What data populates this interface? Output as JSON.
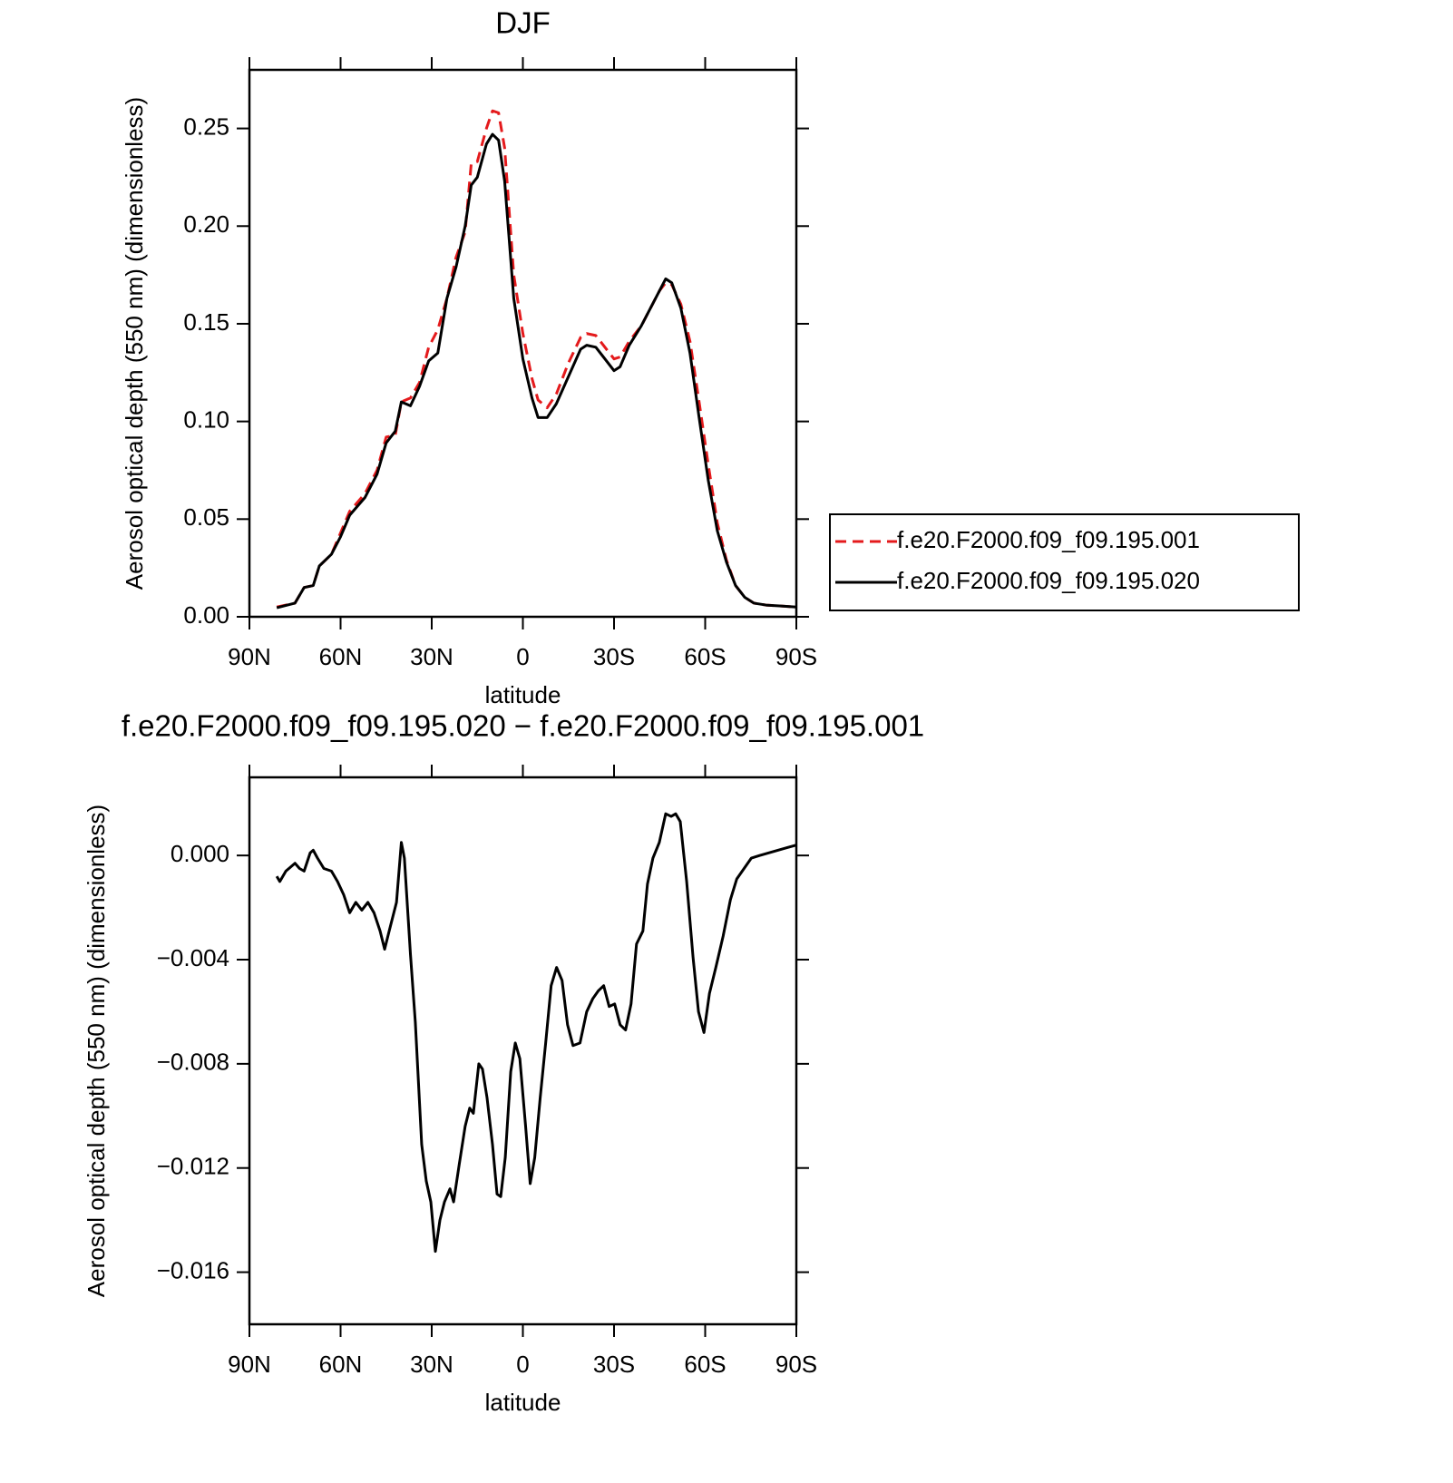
{
  "chart_data": [
    {
      "type": "line",
      "title": "DJF",
      "xlabel": "latitude",
      "ylabel": "Aerosol optical depth (550 nm) (dimensionless)",
      "xlim": [
        90,
        -90
      ],
      "ylim": [
        0,
        0.28
      ],
      "xticks": [
        {
          "value": 90,
          "label": "90N"
        },
        {
          "value": 60,
          "label": "60N"
        },
        {
          "value": 30,
          "label": "30N"
        },
        0,
        {
          "value": -30,
          "label": "30S"
        },
        {
          "value": -60,
          "label": "60S"
        },
        {
          "value": -90,
          "label": "90S"
        }
      ],
      "yticks": [
        {
          "value": 0,
          "label": "0.00"
        },
        0.05,
        {
          "value": 0.1,
          "label": "0.10"
        },
        0.15,
        {
          "value": 0.2,
          "label": "0.20"
        },
        0.25
      ],
      "legend": "right",
      "x": [
        81,
        75,
        72,
        69,
        67,
        63,
        60,
        57,
        52,
        48,
        45,
        42,
        40,
        37,
        34,
        31,
        28,
        25,
        22,
        19,
        17,
        15,
        12,
        10,
        8,
        6,
        3,
        0,
        -3,
        -5,
        -8,
        -11,
        -15,
        -19,
        -21,
        -24,
        -27,
        -30,
        -32,
        -35,
        -39,
        -42,
        -45,
        -47,
        -49,
        -52,
        -55,
        -58,
        -61,
        -64,
        -67,
        -70,
        -73,
        -76,
        -80,
        -85,
        -90
      ],
      "series": [
        {
          "name": "f.e20.F2000.f09_f09.195.001",
          "color": "#e41a1c",
          "linestyle": "dashed",
          "values": [
            0.005,
            0.007,
            0.015,
            0.016,
            0.026,
            0.032,
            0.043,
            0.054,
            0.063,
            0.075,
            0.092,
            0.093,
            0.11,
            0.112,
            0.12,
            0.138,
            0.147,
            0.163,
            0.184,
            0.197,
            0.232,
            0.233,
            0.25,
            0.259,
            0.258,
            0.24,
            0.175,
            0.145,
            0.122,
            0.111,
            0.107,
            0.114,
            0.13,
            0.143,
            0.145,
            0.144,
            0.138,
            0.132,
            0.133,
            0.141,
            0.149,
            0.158,
            0.167,
            0.171,
            0.17,
            0.16,
            0.141,
            0.11,
            0.078,
            0.048,
            0.029,
            0.016,
            0.01,
            0.007,
            0.006,
            0.0055,
            0.005
          ]
        },
        {
          "name": "f.e20.F2000.f09_f09.195.020",
          "color": "#000000",
          "linestyle": "solid",
          "values": [
            0.0046,
            0.007,
            0.015,
            0.016,
            0.026,
            0.032,
            0.041,
            0.052,
            0.061,
            0.073,
            0.089,
            0.095,
            0.11,
            0.108,
            0.118,
            0.131,
            0.135,
            0.163,
            0.179,
            0.2,
            0.221,
            0.225,
            0.242,
            0.247,
            0.244,
            0.223,
            0.163,
            0.132,
            0.112,
            0.102,
            0.102,
            0.109,
            0.123,
            0.137,
            0.139,
            0.138,
            0.132,
            0.126,
            0.128,
            0.139,
            0.149,
            0.158,
            0.167,
            0.173,
            0.171,
            0.158,
            0.135,
            0.102,
            0.07,
            0.044,
            0.028,
            0.016,
            0.01,
            0.007,
            0.006,
            0.0055,
            0.005
          ]
        }
      ]
    },
    {
      "type": "line",
      "title": "f.e20.F2000.f09_f09.195.020 − f.e20.F2000.f09_f09.195.001",
      "xlabel": "latitude",
      "ylabel": "Aerosol optical depth (550 nm) (dimensionless)",
      "xlim": [
        90,
        -90
      ],
      "ylim": [
        -0.018,
        0.003
      ],
      "xticks": [
        {
          "value": 90,
          "label": "90N"
        },
        {
          "value": 60,
          "label": "60N"
        },
        {
          "value": 30,
          "label": "30N"
        },
        0,
        {
          "value": -30,
          "label": "30S"
        },
        {
          "value": -60,
          "label": "60S"
        },
        {
          "value": -90,
          "label": "90S"
        }
      ],
      "yticks": [
        {
          "value": 0,
          "label": "0.000"
        },
        {
          "value": -0.004,
          "label": "−0.004"
        },
        {
          "value": -0.008,
          "label": "−0.008"
        },
        {
          "value": -0.012,
          "label": "−0.012"
        },
        {
          "value": -0.016,
          "label": "−0.016"
        }
      ],
      "color": "#000000",
      "x": [
        81,
        80,
        78,
        75,
        73.5,
        72,
        70,
        69,
        67.6,
        65.5,
        63,
        61,
        59,
        57,
        55,
        53,
        51,
        49,
        47,
        45.5,
        44,
        41.6,
        40,
        39,
        37,
        35.4,
        33.3,
        31.8,
        30.3,
        28.8,
        27.3,
        25.8,
        24,
        22.8,
        21,
        19,
        17.5,
        16.3,
        14.5,
        13.3,
        11.8,
        10,
        8.5,
        7.3,
        5.8,
        4,
        2.5,
        1,
        -0.9,
        -2.4,
        -3.9,
        -5.7,
        -7.5,
        -9.3,
        -11.1,
        -12.9,
        -14.7,
        -16.5,
        -18.8,
        -21,
        -23,
        -24.8,
        -26.6,
        -28.4,
        -30.2,
        -32,
        -33.8,
        -35.6,
        -37.4,
        -39.5,
        -41,
        -42.8,
        -44.9,
        -47,
        -48.8,
        -50.3,
        -51.8,
        -53.9,
        -56,
        -57.8,
        -59.6,
        -61.4,
        -63.5,
        -65.9,
        -68.3,
        -70.4,
        -72.8,
        -75.2,
        -77.9,
        -80.9,
        -83.9,
        -86.9,
        -90
      ],
      "values": [
        -0.0008,
        -0.001,
        -0.0006,
        -0.0003,
        -0.0005,
        -0.0006,
        0.0001,
        0.0002,
        -0.0001,
        -0.0005,
        -0.0006,
        -0.001,
        -0.0015,
        -0.0022,
        -0.0018,
        -0.0021,
        -0.0018,
        -0.0022,
        -0.0029,
        -0.0036,
        -0.0029,
        -0.0018,
        0.0005,
        -0.0001,
        -0.0038,
        -0.0064,
        -0.0111,
        -0.0125,
        -0.0133,
        -0.0152,
        -0.014,
        -0.0133,
        -0.0128,
        -0.0133,
        -0.0119,
        -0.0104,
        -0.0097,
        -0.0099,
        -0.008,
        -0.0082,
        -0.0093,
        -0.0111,
        -0.013,
        -0.0131,
        -0.0116,
        -0.0083,
        -0.0072,
        -0.0078,
        -0.0104,
        -0.0126,
        -0.0116,
        -0.0093,
        -0.0072,
        -0.005,
        -0.0043,
        -0.0048,
        -0.0065,
        -0.0073,
        -0.0072,
        -0.006,
        -0.0055,
        -0.0052,
        -0.005,
        -0.0058,
        -0.0057,
        -0.0065,
        -0.0067,
        -0.0057,
        -0.0034,
        -0.0029,
        -0.0011,
        -0.0001,
        0.0005,
        0.0016,
        0.0015,
        0.0016,
        0.0013,
        -0.001,
        -0.0039,
        -0.006,
        -0.0068,
        -0.0053,
        -0.0043,
        -0.0031,
        -0.0017,
        -0.0009,
        -0.0005,
        -0.0001,
        0,
        0.0001,
        0.0002,
        0.0003,
        0.0004
      ]
    }
  ]
}
